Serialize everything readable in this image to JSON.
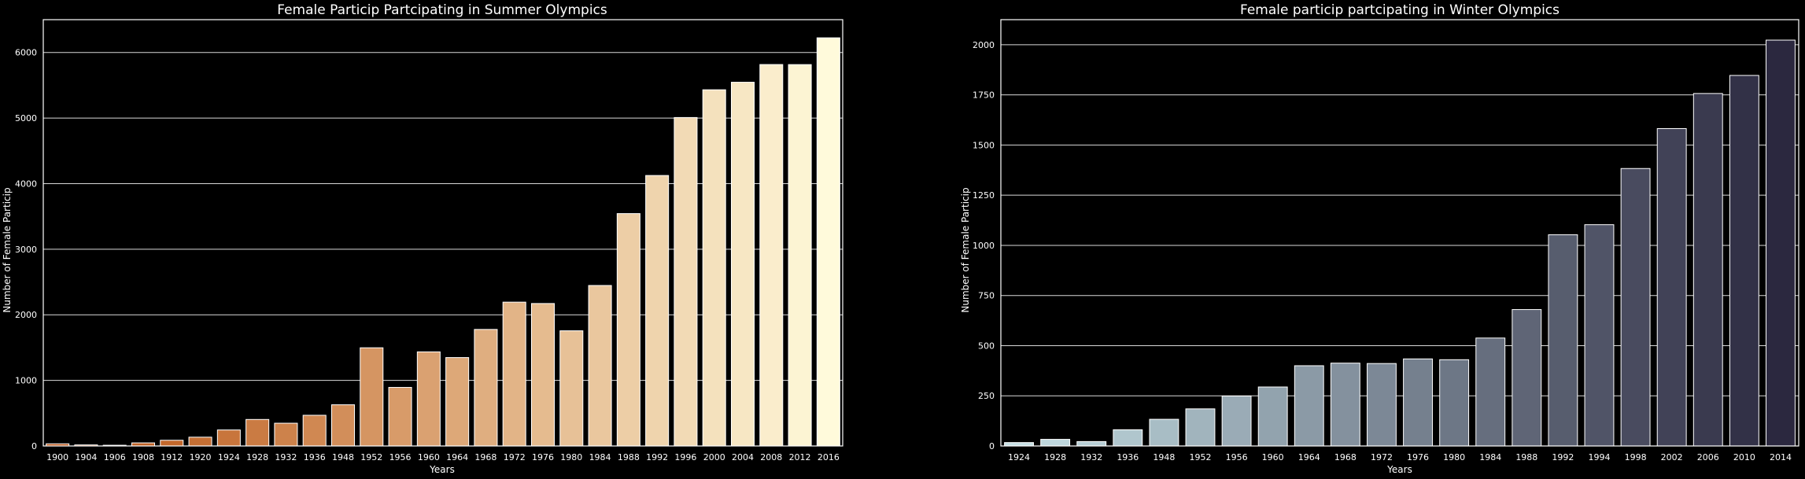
{
  "chart_data": [
    {
      "type": "bar",
      "title": "Female Particip Partcipating in Summer Olympics",
      "xlabel": "Years",
      "ylabel": "Number of Female Particip",
      "categories": [
        "1900",
        "1904",
        "1906",
        "1908",
        "1912",
        "1920",
        "1924",
        "1928",
        "1932",
        "1936",
        "1948",
        "1952",
        "1956",
        "1960",
        "1964",
        "1968",
        "1972",
        "1976",
        "1980",
        "1984",
        "1988",
        "1992",
        "1996",
        "2000",
        "2004",
        "2008",
        "2012",
        "2016"
      ],
      "values": [
        33,
        16,
        11,
        47,
        87,
        134,
        244,
        404,
        347,
        468,
        628,
        1497,
        893,
        1435,
        1348,
        1777,
        2193,
        2172,
        1756,
        2447,
        3543,
        4124,
        5008,
        5431,
        5546,
        5816,
        5815,
        6223
      ],
      "ylim": [
        0,
        6500
      ],
      "yticks": [
        0,
        1000,
        2000,
        3000,
        4000,
        5000,
        6000
      ],
      "grid": "horizontal",
      "palette": "YlOrBr",
      "color_start": "#b84f0e",
      "color_end": "#fffadb"
    },
    {
      "type": "bar",
      "title": "Female particip partcipating in Winter Olympics",
      "xlabel": "Years",
      "ylabel": "Number of Female Particip",
      "categories": [
        "1924",
        "1928",
        "1932",
        "1936",
        "1948",
        "1952",
        "1956",
        "1960",
        "1964",
        "1968",
        "1972",
        "1976",
        "1980",
        "1984",
        "1988",
        "1992",
        "1994",
        "1998",
        "2002",
        "2006",
        "2010",
        "2014"
      ],
      "values": [
        17,
        33,
        22,
        81,
        133,
        185,
        249,
        294,
        400,
        413,
        411,
        434,
        430,
        538,
        680,
        1053,
        1103,
        1383,
        1582,
        1757,
        1847,
        2023
      ],
      "ylim": [
        0,
        2125
      ],
      "yticks": [
        0,
        250,
        500,
        750,
        1000,
        1250,
        1500,
        1750,
        2000
      ],
      "grid": "horizontal",
      "palette": "bone_r",
      "color_start": "#c6e0e5",
      "color_end": "#2b283f"
    }
  ]
}
